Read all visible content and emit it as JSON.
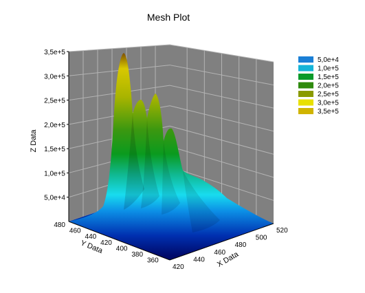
{
  "chart_data": {
    "type": "surface",
    "title": "Mesh Plot",
    "xlabel": "X Data",
    "ylabel": "Y Data",
    "zlabel": "Z Data",
    "x_ticks": [
      "420",
      "440",
      "460",
      "480",
      "500",
      "520"
    ],
    "y_ticks": [
      "360",
      "380",
      "400",
      "420",
      "440",
      "460",
      "480"
    ],
    "z_ticks": [
      "5,0e+4",
      "1,0e+5",
      "1,5e+5",
      "2,0e+5",
      "2,5e+5",
      "3,0e+5",
      "3,5e+5"
    ],
    "xlim": [
      420,
      520
    ],
    "ylim": [
      350,
      480
    ],
    "zlim": [
      0,
      350000
    ],
    "grid": true,
    "legend_position": "right",
    "legend": [
      {
        "label": "5,0e+4",
        "color": "#1a7fd6"
      },
      {
        "label": "1,0e+5",
        "color": "#14b4d8"
      },
      {
        "label": "1,5e+5",
        "color": "#0a9a2a"
      },
      {
        "label": "2,0e+5",
        "color": "#2e8a0e"
      },
      {
        "label": "2,5e+5",
        "color": "#8a9a00"
      },
      {
        "label": "3,0e+5",
        "color": "#e8e000"
      },
      {
        "label": "3,5e+5",
        "color": "#d0b400"
      }
    ],
    "peaks": [
      {
        "x": 430,
        "y": 470,
        "z": 350000
      },
      {
        "x": 440,
        "y": 465,
        "z": 260000
      },
      {
        "x": 450,
        "y": 455,
        "z": 270000
      },
      {
        "x": 465,
        "y": 445,
        "z": 200000
      },
      {
        "x": 480,
        "y": 430,
        "z": 80000
      }
    ]
  }
}
